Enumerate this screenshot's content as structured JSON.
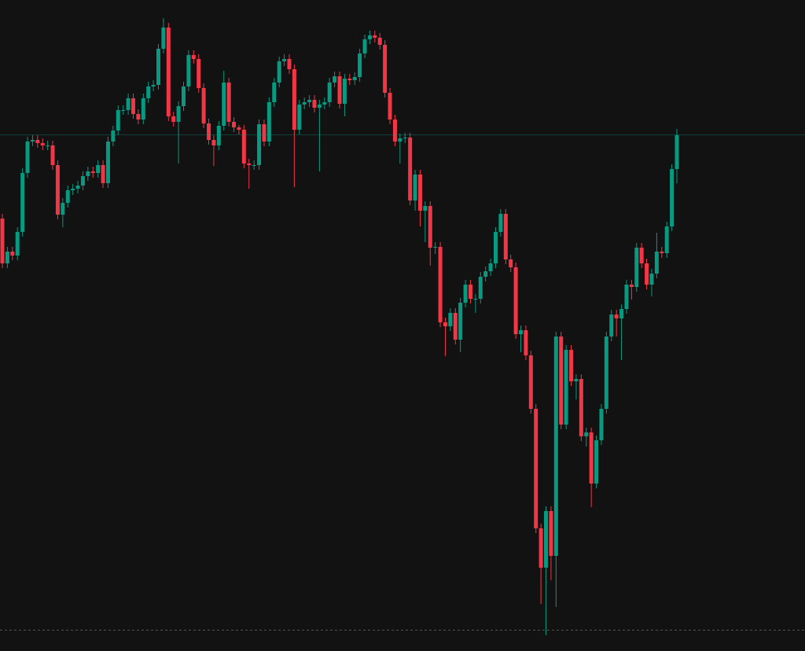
{
  "chart_data": {
    "type": "candlestick",
    "up_color": "#089981",
    "down_color": "#f23645",
    "ylim": [
      0,
      828
    ],
    "open": [
      550,
      493,
      508,
      503,
      533,
      608,
      648,
      650,
      646,
      643,
      643,
      618,
      555,
      570,
      586,
      588,
      592,
      604,
      610,
      608,
      618,
      595,
      648,
      662,
      688,
      688,
      703,
      683,
      676,
      703,
      718,
      720,
      766,
      793,
      680,
      673,
      693,
      718,
      758,
      753,
      716,
      671,
      650,
      643,
      668,
      723,
      673,
      666,
      663,
      620,
      618,
      618,
      670,
      648,
      698,
      723,
      750,
      753,
      740,
      663,
      695,
      698,
      701,
      691,
      695,
      698,
      723,
      731,
      696,
      728,
      726,
      730,
      760,
      778,
      783,
      780,
      771,
      710,
      676,
      648,
      652,
      653,
      573,
      606,
      560,
      566,
      513,
      514,
      418,
      413,
      430,
      396,
      443,
      466,
      448,
      448,
      476,
      483,
      493,
      533,
      556,
      498,
      488,
      403,
      408,
      376,
      308,
      156,
      106,
      178,
      121,
      400,
      288,
      383,
      343,
      346,
      273,
      278,
      213,
      268,
      308,
      400,
      428,
      423,
      435,
      466,
      463,
      513,
      493,
      466,
      480,
      508,
      506,
      540,
      613
    ],
    "high": [
      556,
      514,
      514,
      539,
      614,
      654,
      656,
      656,
      652,
      649,
      649,
      624,
      576,
      592,
      594,
      598,
      610,
      616,
      616,
      624,
      624,
      654,
      668,
      694,
      694,
      709,
      709,
      689,
      709,
      724,
      726,
      772,
      805,
      799,
      686,
      699,
      724,
      764,
      764,
      759,
      722,
      677,
      656,
      674,
      738,
      729,
      679,
      669,
      669,
      626,
      624,
      676,
      676,
      704,
      729,
      756,
      759,
      759,
      746,
      701,
      704,
      707,
      707,
      701,
      704,
      729,
      737,
      737,
      734,
      734,
      736,
      766,
      784,
      789,
      789,
      786,
      777,
      716,
      682,
      658,
      659,
      659,
      612,
      612,
      572,
      572,
      520,
      520,
      424,
      436,
      436,
      449,
      472,
      472,
      454,
      482,
      489,
      499,
      539,
      562,
      562,
      504,
      494,
      414,
      414,
      382,
      314,
      162,
      184,
      184,
      406,
      406,
      389,
      389,
      352,
      352,
      284,
      284,
      274,
      314,
      406,
      434,
      434,
      441,
      472,
      472,
      519,
      519,
      499,
      486,
      532,
      514,
      546,
      619,
      664
    ],
    "low": [
      487,
      487,
      497,
      497,
      527,
      602,
      642,
      640,
      637,
      637,
      612,
      549,
      539,
      564,
      580,
      582,
      586,
      598,
      602,
      602,
      589,
      589,
      642,
      656,
      682,
      682,
      677,
      670,
      670,
      697,
      712,
      714,
      760,
      674,
      667,
      620,
      687,
      712,
      747,
      710,
      665,
      644,
      617,
      637,
      662,
      667,
      660,
      657,
      614,
      588,
      612,
      612,
      642,
      642,
      692,
      717,
      744,
      734,
      590,
      657,
      689,
      692,
      685,
      610,
      689,
      692,
      717,
      690,
      680,
      720,
      720,
      724,
      754,
      772,
      774,
      765,
      704,
      670,
      642,
      620,
      646,
      567,
      560,
      540,
      520,
      490,
      505,
      412,
      375,
      407,
      390,
      380,
      437,
      442,
      430,
      442,
      470,
      477,
      487,
      527,
      492,
      482,
      397,
      380,
      370,
      302,
      150,
      60,
      20,
      90,
      56,
      282,
      282,
      337,
      320,
      267,
      260,
      183,
      207,
      262,
      302,
      394,
      400,
      370,
      429,
      447,
      457,
      487,
      460,
      451,
      474,
      500,
      500,
      534,
      595
    ],
    "close": [
      493,
      508,
      503,
      533,
      608,
      648,
      650,
      646,
      643,
      643,
      618,
      555,
      570,
      586,
      588,
      592,
      604,
      610,
      608,
      618,
      595,
      648,
      662,
      688,
      688,
      703,
      683,
      676,
      703,
      718,
      720,
      766,
      793,
      680,
      673,
      693,
      718,
      758,
      753,
      716,
      671,
      650,
      643,
      668,
      723,
      673,
      666,
      663,
      620,
      618,
      618,
      670,
      648,
      698,
      723,
      750,
      753,
      740,
      663,
      695,
      698,
      701,
      691,
      695,
      698,
      723,
      731,
      696,
      728,
      726,
      730,
      760,
      778,
      783,
      780,
      771,
      710,
      676,
      648,
      652,
      653,
      573,
      606,
      560,
      566,
      513,
      514,
      418,
      413,
      430,
      396,
      443,
      466,
      448,
      448,
      476,
      483,
      493,
      533,
      556,
      498,
      488,
      403,
      408,
      376,
      308,
      156,
      106,
      178,
      121,
      400,
      288,
      383,
      343,
      346,
      273,
      278,
      213,
      268,
      308,
      400,
      428,
      423,
      435,
      466,
      463,
      513,
      493,
      466,
      480,
      508,
      506,
      540,
      613,
      656
    ]
  }
}
